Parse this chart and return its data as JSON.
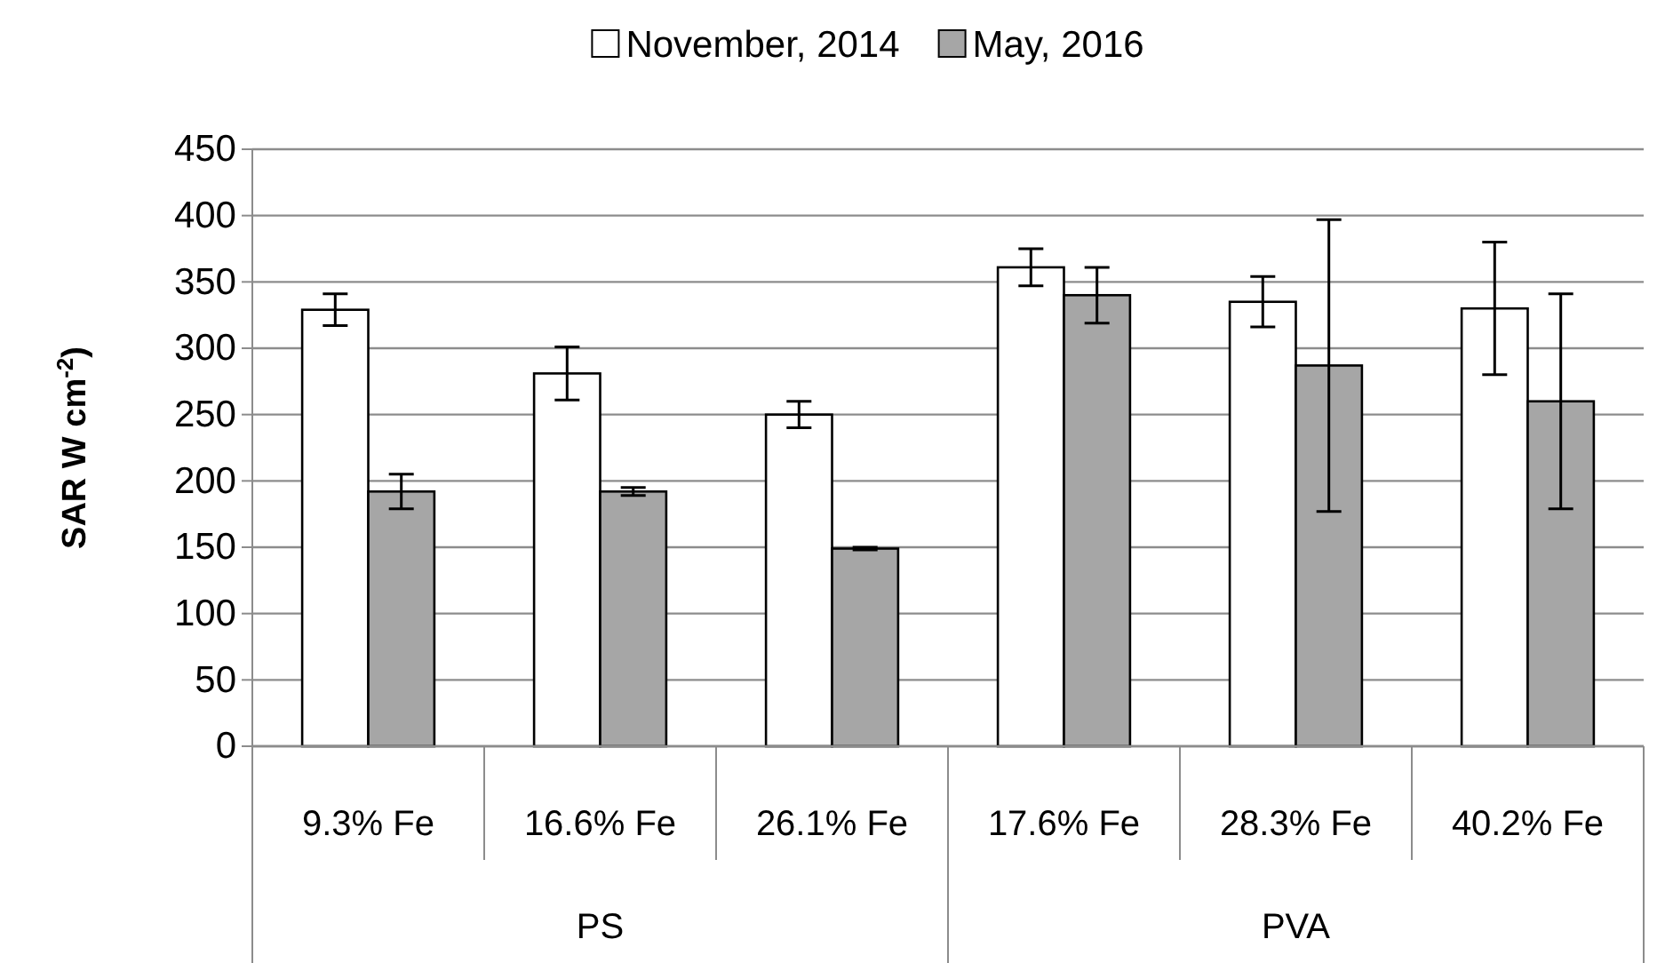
{
  "chart_data": {
    "type": "bar",
    "ylabel": "SAR W cm$^{-2}$)",
    "categories": [
      "9.3% Fe",
      "16.6% Fe",
      "26.1% Fe",
      "17.6% Fe",
      "28.3% Fe",
      "40.2% Fe"
    ],
    "series": [
      {
        "name": "November, 2014",
        "color": "#ffffff",
        "values": [
          329,
          281,
          250,
          361,
          335,
          330
        ],
        "errors": [
          12,
          20,
          10,
          14,
          19,
          50
        ]
      },
      {
        "name": "May, 2016",
        "color": "#a6a6a6",
        "values": [
          192,
          192,
          149,
          340,
          287,
          260
        ],
        "errors": [
          13,
          3,
          1,
          21,
          110,
          81
        ]
      }
    ],
    "ylim": [
      0,
      450
    ],
    "yticks": [
      0,
      50,
      100,
      150,
      200,
      250,
      300,
      350,
      400,
      450
    ],
    "grid": "y",
    "legend": "top",
    "annotations": [
      "PS",
      "PVA"
    ]
  }
}
